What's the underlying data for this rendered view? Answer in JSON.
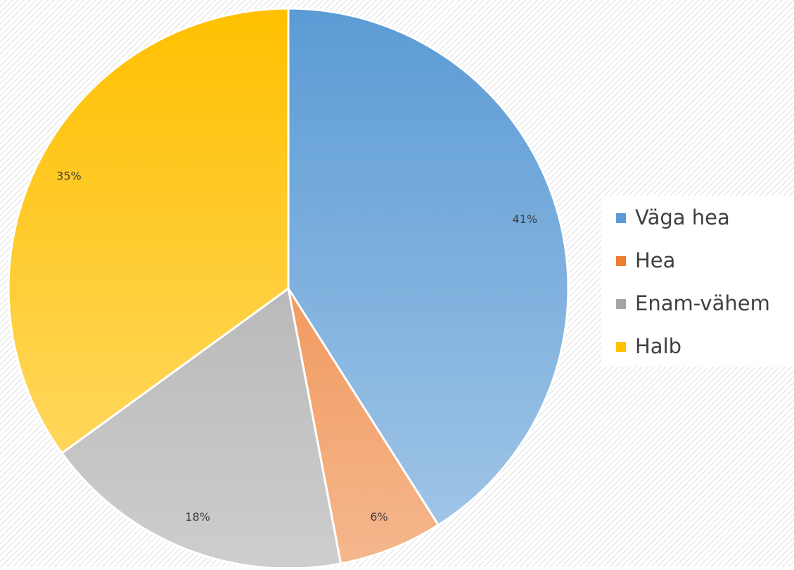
{
  "chart_data": {
    "type": "pie",
    "categories": [
      "Väga hea",
      "Hea",
      "Enam-vähem",
      "Halb"
    ],
    "values": [
      41,
      6,
      18,
      35
    ],
    "value_labels": [
      "41%",
      "6%",
      "18%",
      "35%"
    ],
    "colors": [
      "#5b9bd5",
      "#ed7d31",
      "#a5a5a5",
      "#ffc000"
    ],
    "legend": "right"
  }
}
